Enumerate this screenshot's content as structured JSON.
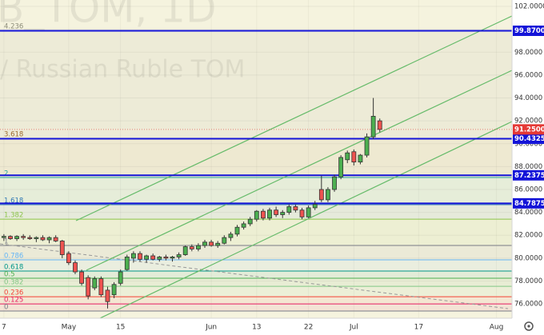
{
  "chart_data": {
    "type": "candlestick",
    "watermark": [
      "B_TOM, 1D",
      "/ Russian Ruble TOM"
    ],
    "up_color": "#4caf50",
    "down_color": "#ef5350",
    "ohlc": [
      [
        81.8,
        82.1,
        81.5,
        81.9
      ],
      [
        81.9,
        82.0,
        81.6,
        81.7
      ],
      [
        81.7,
        82.0,
        81.5,
        81.9
      ],
      [
        81.9,
        82.1,
        81.6,
        81.8
      ],
      [
        81.8,
        82.0,
        81.6,
        81.7
      ],
      [
        81.7,
        81.9,
        81.4,
        81.8
      ],
      [
        81.8,
        82.0,
        81.5,
        81.6
      ],
      [
        81.6,
        81.9,
        81.3,
        81.8
      ],
      [
        81.8,
        82.0,
        81.4,
        81.5
      ],
      [
        81.5,
        81.6,
        80.0,
        80.3
      ],
      [
        80.4,
        80.6,
        79.4,
        79.6
      ],
      [
        79.6,
        79.8,
        78.6,
        78.8
      ],
      [
        78.8,
        79.0,
        77.6,
        77.8
      ],
      [
        78.3,
        78.5,
        76.4,
        76.7
      ],
      [
        77.4,
        78.4,
        77.2,
        78.2
      ],
      [
        78.2,
        78.4,
        76.6,
        76.8
      ],
      [
        77.2,
        77.5,
        75.6,
        76.2
      ],
      [
        76.8,
        77.9,
        76.5,
        77.7
      ],
      [
        77.8,
        79.0,
        77.6,
        78.8
      ],
      [
        79.0,
        80.3,
        78.9,
        80.1
      ],
      [
        80.0,
        80.6,
        79.6,
        80.4
      ],
      [
        80.4,
        80.6,
        79.7,
        79.9
      ],
      [
        79.9,
        80.3,
        79.6,
        80.2
      ],
      [
        80.2,
        80.4,
        79.8,
        79.9
      ],
      [
        79.9,
        80.2,
        79.7,
        80.1
      ],
      [
        80.1,
        80.3,
        79.8,
        80.0
      ],
      [
        80.0,
        80.2,
        79.7,
        80.1
      ],
      [
        80.1,
        80.5,
        79.9,
        80.3
      ],
      [
        80.3,
        81.1,
        80.2,
        81.0
      ],
      [
        81.0,
        81.2,
        80.6,
        80.8
      ],
      [
        80.8,
        81.3,
        80.6,
        81.1
      ],
      [
        81.1,
        81.6,
        80.9,
        81.4
      ],
      [
        81.4,
        81.6,
        81.0,
        81.1
      ],
      [
        81.1,
        81.5,
        80.9,
        81.3
      ],
      [
        81.3,
        82.0,
        81.2,
        81.8
      ],
      [
        81.8,
        82.3,
        81.5,
        82.1
      ],
      [
        82.1,
        82.9,
        81.9,
        82.7
      ],
      [
        82.7,
        83.2,
        82.5,
        83.0
      ],
      [
        83.0,
        83.6,
        82.8,
        83.4
      ],
      [
        83.4,
        84.2,
        83.2,
        84.1
      ],
      [
        84.1,
        84.3,
        83.3,
        83.5
      ],
      [
        83.5,
        84.4,
        83.3,
        84.2
      ],
      [
        84.2,
        84.5,
        83.6,
        83.8
      ],
      [
        83.8,
        84.2,
        83.5,
        84.0
      ],
      [
        84.0,
        84.7,
        83.8,
        84.5
      ],
      [
        84.5,
        84.7,
        84.0,
        84.2
      ],
      [
        84.2,
        84.4,
        83.4,
        83.6
      ],
      [
        83.6,
        84.6,
        83.5,
        84.4
      ],
      [
        84.4,
        85.0,
        84.2,
        84.7
      ],
      [
        86.0,
        87.2,
        84.9,
        85.1
      ],
      [
        85.1,
        86.2,
        84.9,
        86.0
      ],
      [
        86.0,
        87.3,
        85.8,
        87.1
      ],
      [
        87.1,
        89.0,
        86.9,
        88.8
      ],
      [
        88.6,
        89.4,
        88.3,
        89.2
      ],
      [
        89.3,
        89.5,
        88.1,
        88.4
      ],
      [
        88.4,
        89.1,
        88.2,
        89.0
      ],
      [
        89.0,
        90.9,
        88.8,
        90.6
      ],
      [
        90.6,
        94.0,
        90.4,
        92.4
      ],
      [
        92.0,
        92.2,
        91.0,
        91.25
      ]
    ],
    "xlim": [
      -0.6,
      78.4
    ],
    "xticks": [
      {
        "value": 0,
        "label": "7"
      },
      {
        "value": 10,
        "label": "May"
      },
      {
        "value": 18,
        "label": "15"
      },
      {
        "value": 32,
        "label": "Jun"
      },
      {
        "value": 39,
        "label": "13"
      },
      {
        "value": 47,
        "label": "22"
      },
      {
        "value": 54,
        "label": "Jul"
      },
      {
        "value": 64,
        "label": "17"
      },
      {
        "value": 76,
        "label": "Aug"
      }
    ],
    "ylim": [
      74.75,
      102.56
    ],
    "yticks": [
      {
        "value": 76,
        "label": "76.0000"
      },
      {
        "value": 78,
        "label": "78.0000"
      },
      {
        "value": 80,
        "label": "80.0000"
      },
      {
        "value": 82,
        "label": "82.0000"
      },
      {
        "value": 84,
        "label": "84.0000"
      },
      {
        "value": 86,
        "label": "86.0000"
      },
      {
        "value": 88,
        "label": "88.0000"
      },
      {
        "value": 90,
        "label": "90.0000"
      },
      {
        "value": 92,
        "label": "92.0000"
      },
      {
        "value": 94,
        "label": "94.0000"
      },
      {
        "value": 96,
        "label": "96.0000"
      },
      {
        "value": 98,
        "label": "98.0000"
      },
      {
        "value": 100,
        "label": "100.0000"
      },
      {
        "value": 102,
        "label": "102.0000"
      }
    ],
    "levels": [
      {
        "value": 99.87,
        "label": "99.8700"
      },
      {
        "value": 90.4325,
        "label": "90.4325"
      },
      {
        "value": 87.2375,
        "label": "87.2375"
      },
      {
        "value": 84.7875,
        "label": "84.7875"
      }
    ],
    "level_color": "#1414d8",
    "last_price": {
      "value": 91.25,
      "label": "91.2500"
    },
    "last_color": "#e53935",
    "fib": [
      {
        "ratio": 4.236,
        "price": 99.9,
        "color": "#8d8d7a"
      },
      {
        "ratio": 3.618,
        "price": 90.47,
        "color": "#9c6b30"
      },
      {
        "ratio": 2,
        "price": 87.05,
        "color": "#26a69a"
      },
      {
        "ratio": 1.618,
        "price": 84.67,
        "color": "#3179b5"
      },
      {
        "ratio": 1.382,
        "price": 83.41,
        "color": "#8bc34a"
      },
      {
        "ratio": 1,
        "price": 81.11,
        "color": "#787b86"
      },
      {
        "ratio": 0.786,
        "price": 79.85,
        "color": "#64b5f6"
      },
      {
        "ratio": 0.618,
        "price": 78.87,
        "color": "#009688"
      },
      {
        "ratio": 0.5,
        "price": 78.24,
        "color": "#4caf50"
      },
      {
        "ratio": 0.382,
        "price": 77.54,
        "color": "#81c784"
      },
      {
        "ratio": 0.236,
        "price": 76.63,
        "color": "#f44336"
      },
      {
        "ratio": 0.125,
        "price": 76.0,
        "color": "#e91e63"
      },
      {
        "ratio": 0,
        "price": 75.38,
        "color": "#787b86"
      }
    ]
  }
}
